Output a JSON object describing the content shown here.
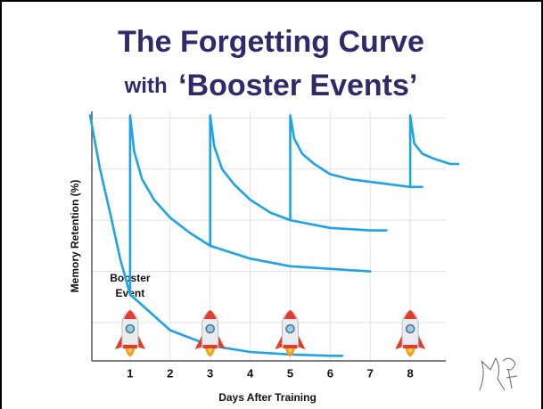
{
  "chart_data": {
    "type": "line",
    "title": "The Forgetting Curve",
    "subtitle": [
      "with",
      "‘Booster Events’"
    ],
    "x_label": "Days After Training",
    "y_label": "Memory Retention (%)",
    "annotation": [
      "Booster",
      "Event"
    ],
    "xlim": [
      0,
      9.2
    ],
    "ylim": [
      0,
      100
    ],
    "xticks": [
      1,
      2,
      3,
      4,
      5,
      6,
      7,
      8
    ],
    "yticks": [
      15,
      35,
      55,
      75,
      95
    ],
    "grid": true,
    "series": [
      {
        "color": "#1ea4e6",
        "x": [
          0,
          0.25,
          0.5,
          0.75,
          1,
          2,
          3,
          4,
          5,
          6,
          6.3
        ],
        "values": [
          96,
          75,
          58,
          40,
          26,
          12,
          6,
          3.5,
          2.5,
          2,
          2
        ]
      },
      {
        "color": "#1ea4e6",
        "x": [
          1,
          1,
          1.1,
          1.3,
          1.6,
          2,
          2.5,
          3,
          4,
          5,
          6,
          7
        ],
        "values": [
          26,
          96,
          82,
          71,
          63,
          56,
          50,
          45,
          40,
          37,
          36,
          35
        ]
      },
      {
        "color": "#1ea4e6",
        "x": [
          3,
          3,
          3.1,
          3.3,
          3.6,
          4,
          4.5,
          5,
          6,
          7,
          7.4
        ],
        "values": [
          45,
          96,
          84,
          75,
          69,
          63,
          58,
          55,
          52,
          51,
          51
        ]
      },
      {
        "color": "#1ea4e6",
        "x": [
          5,
          5,
          5.1,
          5.3,
          5.6,
          6,
          6.5,
          7,
          8,
          8.3
        ],
        "values": [
          55,
          96,
          87,
          81,
          77,
          73,
          71,
          70,
          68,
          68
        ]
      },
      {
        "color": "#1ea4e6",
        "x": [
          8,
          8,
          8.1,
          8.3,
          8.6,
          9,
          9.2
        ],
        "values": [
          68,
          96,
          85,
          81,
          79,
          77,
          77
        ]
      }
    ]
  }
}
